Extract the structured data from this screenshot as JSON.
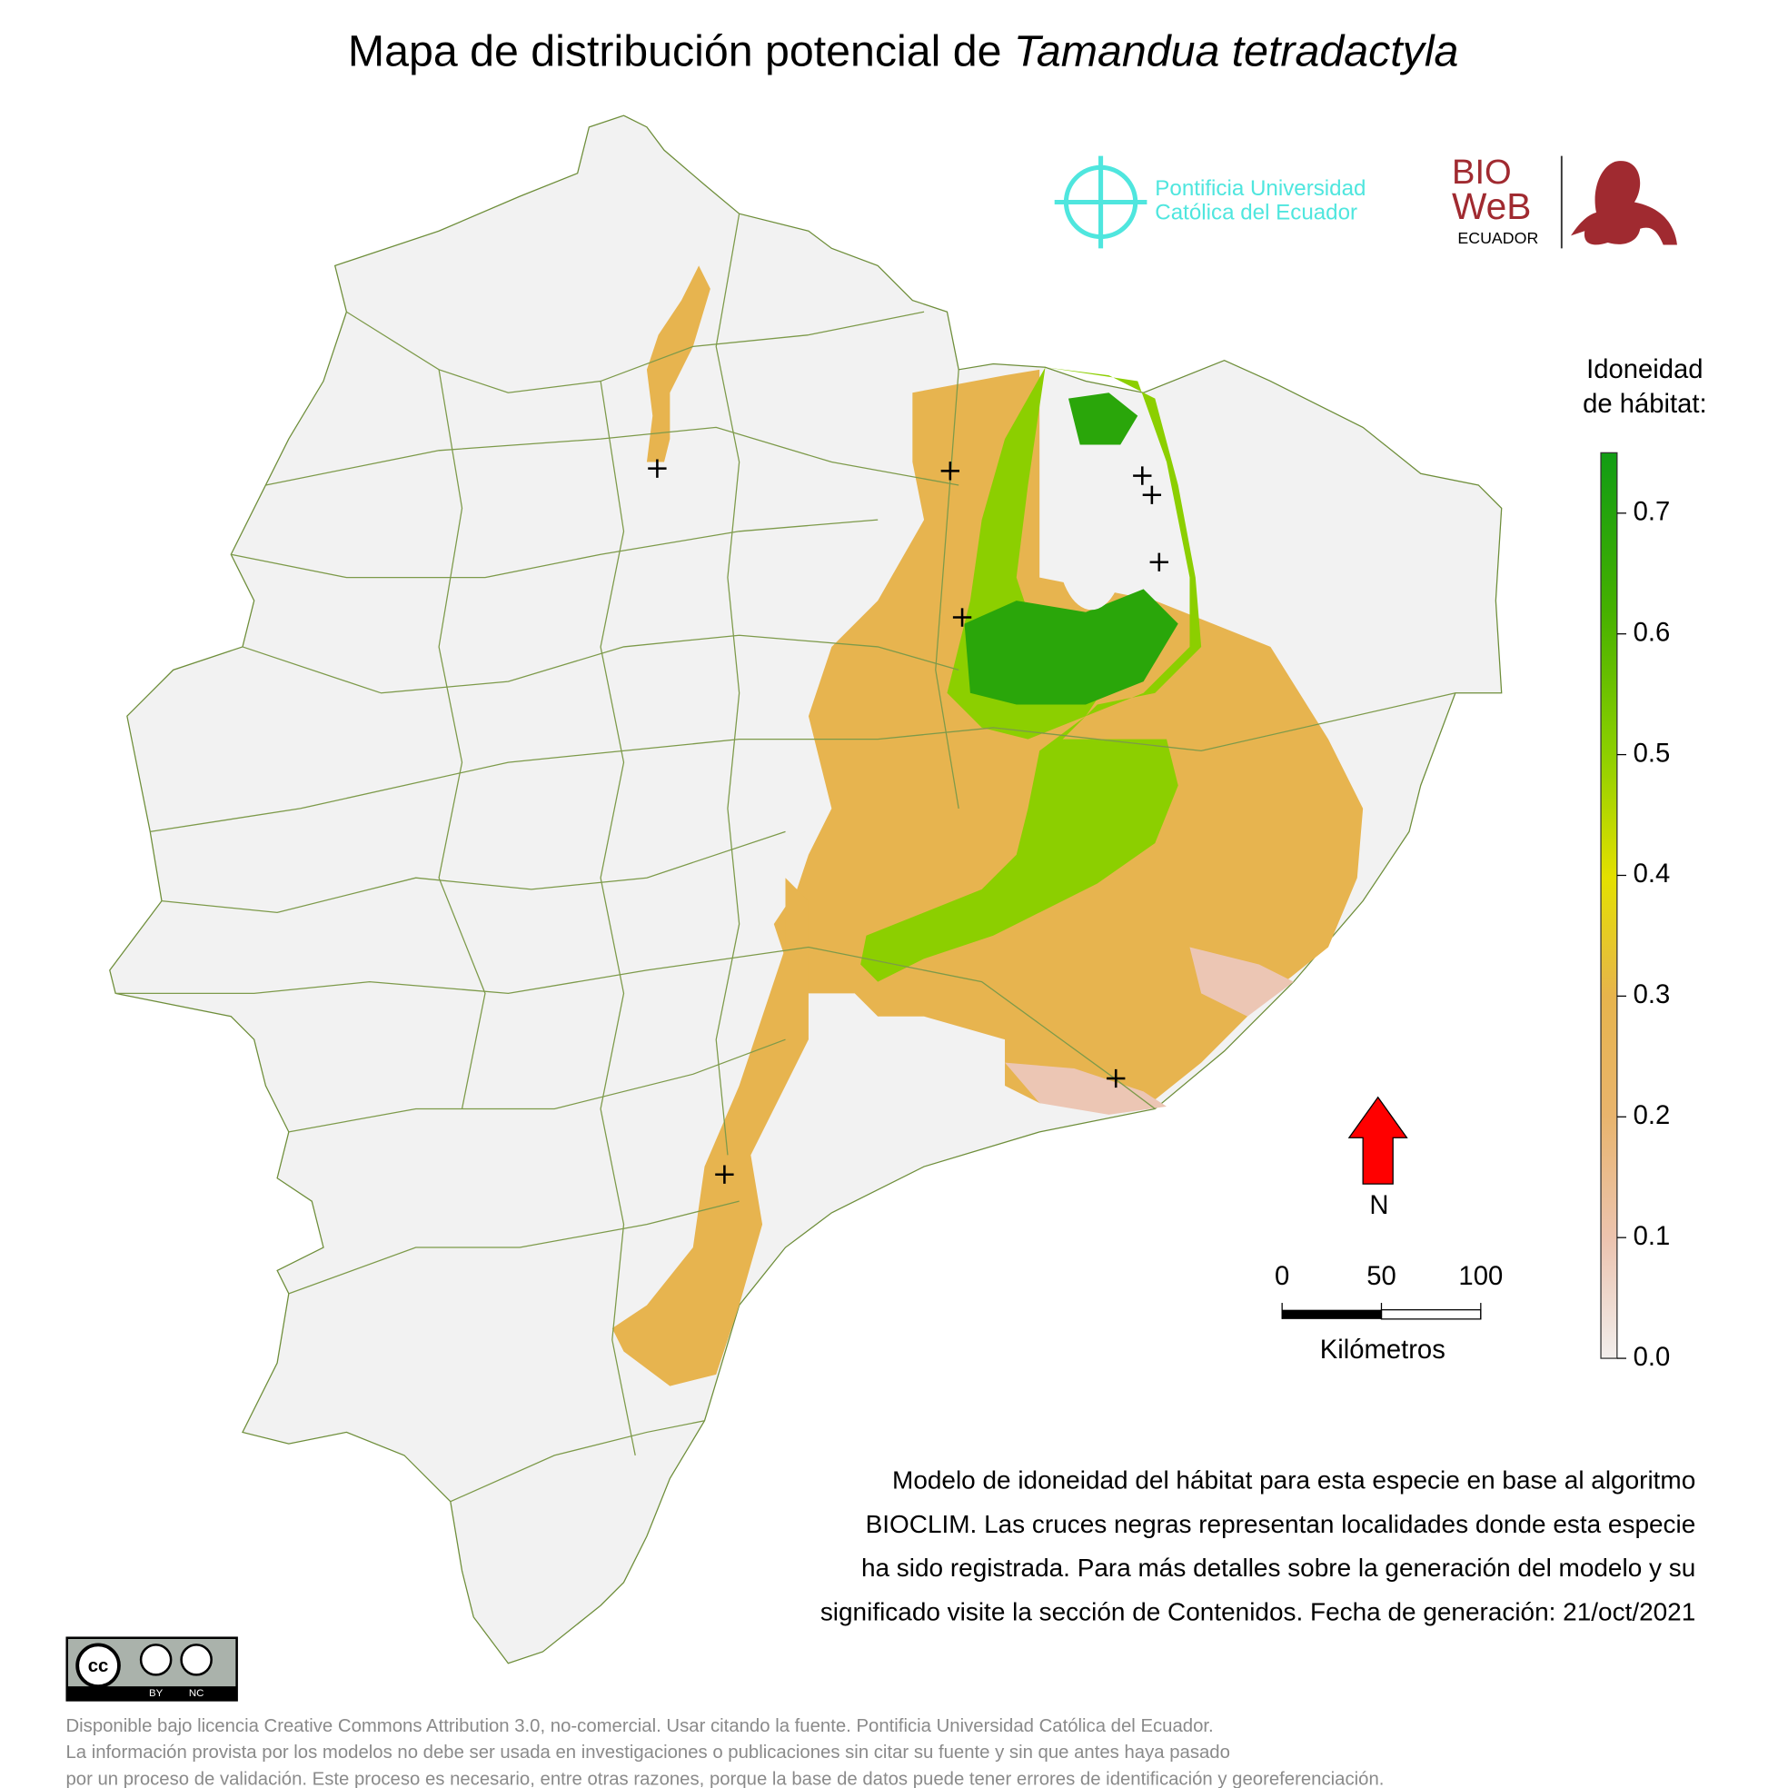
{
  "header": {
    "title": "Mapa de distribución potencial de ",
    "species": "Tamandua tetradactyla"
  },
  "logos": {
    "puce": [
      "Pontificia Universidad",
      "Católica del Ecuador"
    ],
    "bioweb": [
      "BIO",
      "WeB",
      "ECUADOR"
    ]
  },
  "map": {
    "occurrences": [
      {
        "lon": -78.72,
        "lat": -0.02
      },
      {
        "lon": -77.5,
        "lat": -0.03
      },
      {
        "lon": -76.7,
        "lat": -0.05
      },
      {
        "lon": -76.66,
        "lat": -0.13
      },
      {
        "lon": -76.63,
        "lat": -0.41
      },
      {
        "lon": -77.45,
        "lat": -0.64
      },
      {
        "lon": -76.81,
        "lat": -2.56
      },
      {
        "lon": -78.44,
        "lat": -2.96
      }
    ],
    "north": "N",
    "scale_bar": {
      "ticks": [
        0,
        50,
        100
      ],
      "unit": "Kilómetros"
    }
  },
  "legend": {
    "title": [
      "Idoneidad",
      "de hábitat:"
    ],
    "lim": [
      0,
      0.75
    ],
    "ticks": [
      {
        "value": 0,
        "label": "0.0"
      },
      0.1,
      0.2,
      0.3,
      0.4,
      0.5,
      0.6,
      0.7
    ]
  },
  "description": [
    "Modelo de idoneidad del hábitat para esta especie en base al algoritmo",
    "BIOCLIM. Las cruces negras representan localidades donde esta especie",
    "ha sido registrada. Para más detalles sobre la generación del modelo y su",
    "significado visite la sección de Contenidos. Fecha de generación: 21/oct/2021"
  ],
  "license": {
    "badge": [
      "cc",
      "BY",
      "NC"
    ],
    "lines": [
      "Disponible bajo licencia Creative Commons Attribution 3.0, no-comercial. Usar citando la fuente. Pontificia Universidad Católica del Ecuador.",
      "La información provista por los modelos no debe ser usada en investigaciones o publicaciones sin citar su fuente y sin que antes haya pasado",
      "por un proceso de validación. Este proceso es necesario, entre otras razones, porque la base de datos puede tener errores de identificación y georeferenciación."
    ]
  }
}
